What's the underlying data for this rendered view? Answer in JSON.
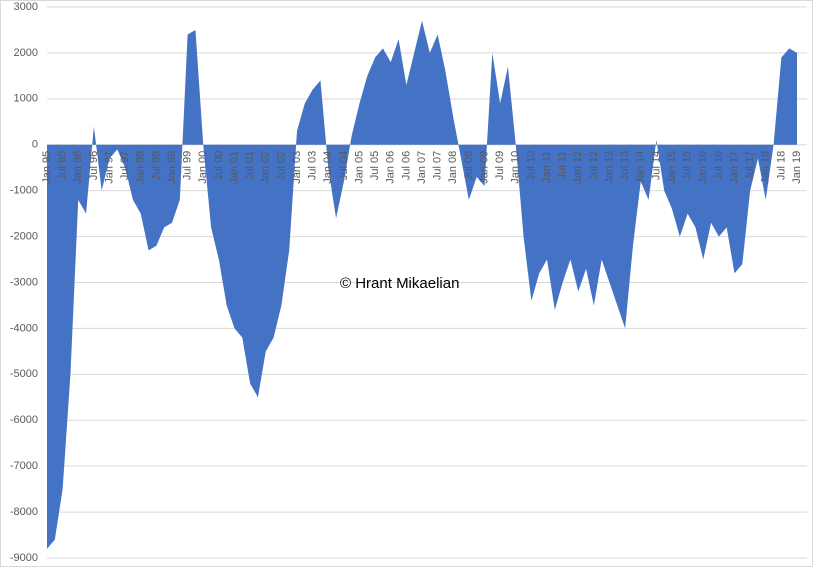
{
  "chart_data": {
    "type": "area",
    "color": "#4472c4",
    "annotation": "© Hrant Mikaelian",
    "categories": [
      "Jan 95",
      null,
      "Jul 95",
      null,
      "Jan 96",
      null,
      "Jul 96",
      null,
      "Jan 97",
      null,
      "Jul 97",
      null,
      "Jan 98",
      null,
      "Jul 98",
      null,
      "Jan 99",
      null,
      "Jul 99",
      null,
      "Jan 00",
      null,
      "Jul 00",
      null,
      "Jan 01",
      null,
      "Jul 01",
      null,
      "Jan 02",
      null,
      "Jul 02",
      null,
      "Jan 03",
      null,
      "Jul 03",
      null,
      "Jan 04",
      null,
      "Jul 04",
      null,
      "Jan 05",
      null,
      "Jul 05",
      null,
      "Jan 06",
      null,
      "Jul 06",
      null,
      "Jan 07",
      null,
      "Jul 07",
      null,
      "Jan 08",
      null,
      "Jul 08",
      null,
      "Jan 09",
      null,
      "Jul 09",
      null,
      "Jan 10",
      null,
      "Jul 10",
      null,
      "Jan 11",
      null,
      "Jul 11",
      null,
      "Jan 12",
      null,
      "Jul 12",
      null,
      "Jan 13",
      null,
      "Jul 13",
      null,
      "Jan 14",
      null,
      "Jul 14",
      null,
      "Jan 15",
      null,
      "Jul 15",
      null,
      "Jan 16",
      null,
      "Jul 16",
      null,
      "Jan 17",
      null,
      "Jul 17",
      null,
      "Jan 18",
      null,
      "Jul 18",
      null,
      "Jan 19"
    ],
    "values": [
      -8800,
      -8600,
      -7500,
      -5000,
      -1200,
      -1500,
      400,
      -1000,
      -300,
      -100,
      -500,
      -1200,
      -1500,
      -2300,
      -2200,
      -1800,
      -1700,
      -1200,
      2400,
      2500,
      0,
      -1800,
      -2500,
      -3500,
      -4000,
      -4200,
      -5200,
      -5500,
      -4500,
      -4200,
      -3500,
      -2300,
      300,
      900,
      1200,
      1400,
      -500,
      -1600,
      -800,
      200,
      900,
      1500,
      1900,
      2100,
      1800,
      2300,
      1300,
      2000,
      2700,
      2000,
      2400,
      1600,
      600,
      -300,
      -1200,
      -700,
      -900,
      2000,
      900,
      1700,
      0,
      -2000,
      -3400,
      -2800,
      -2500,
      -3600,
      -3000,
      -2500,
      -3200,
      -2700,
      -3500,
      -2500,
      -3000,
      -3500,
      -4000,
      -2200,
      -800,
      -1200,
      100,
      -1000,
      -1400,
      -2000,
      -1500,
      -1800,
      -2500,
      -1700,
      -2000,
      -1800,
      -2800,
      -2600,
      -1000,
      -300,
      -1200,
      0,
      1900,
      2100,
      2000
    ],
    "ylim": [
      -9000,
      3000
    ],
    "yticks": [
      -9000,
      -8000,
      -7000,
      -6000,
      -5000,
      -4000,
      -3000,
      -2000,
      -1000,
      0,
      1000,
      2000,
      3000
    ],
    "grid": true
  }
}
